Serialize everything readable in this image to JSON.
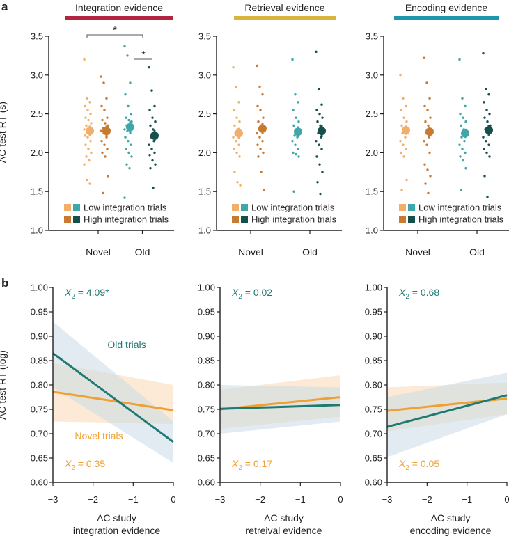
{
  "panel_labels": {
    "a": "a",
    "b": "b"
  },
  "colors": {
    "novel_low": "#f0b06b",
    "novel_high": "#c87a30",
    "old_low": "#3fa7a9",
    "old_high": "#174f4c",
    "integration_bar": "#b22440",
    "retrieval_bar": "#d9b43a",
    "encoding_bar": "#1d96ae",
    "novel_line": "#f0a033",
    "old_line": "#1f7a74",
    "novel_band": "#fbe3c8",
    "old_band": "#c9dbe6"
  },
  "chart_data": [
    {
      "type": "scatter",
      "panel": "a",
      "title": "Integration evidence",
      "ylabel": "AC test RT (s)",
      "ylim": [
        1.0,
        3.5
      ],
      "yticks": [
        "1.0",
        "1.5",
        "2.0",
        "2.5",
        "3.0",
        "3.5"
      ],
      "categories": [
        "Novel",
        "Old"
      ],
      "legend": [
        "Low integration trials",
        "High integration trials"
      ],
      "significance": [
        "*",
        "*"
      ],
      "series": [
        {
          "name": "Novel low",
          "color_key": "novel_low",
          "mean": 2.28,
          "err": 0.07,
          "points": [
            3.2,
            2.7,
            2.65,
            2.6,
            2.55,
            2.5,
            2.45,
            2.42,
            2.38,
            2.35,
            2.32,
            2.3,
            2.28,
            2.25,
            2.22,
            2.2,
            2.15,
            2.1,
            2.05,
            2.0,
            1.95,
            1.9,
            1.85,
            1.65,
            1.6
          ]
        },
        {
          "name": "Novel high",
          "color_key": "novel_high",
          "mean": 2.28,
          "err": 0.07,
          "points": [
            2.98,
            2.9,
            2.7,
            2.6,
            2.55,
            2.45,
            2.42,
            2.38,
            2.35,
            2.32,
            2.3,
            2.28,
            2.25,
            2.2,
            2.15,
            2.1,
            2.05,
            2.0,
            1.95,
            1.7,
            1.48
          ]
        },
        {
          "name": "Old low",
          "color_key": "old_low",
          "mean": 2.33,
          "err": 0.08,
          "points": [
            3.37,
            3.25,
            2.9,
            2.75,
            2.6,
            2.5,
            2.45,
            2.42,
            2.4,
            2.35,
            2.32,
            2.3,
            2.28,
            2.25,
            2.2,
            2.15,
            2.1,
            2.05,
            2.0,
            1.95,
            1.85,
            1.8,
            1.42
          ]
        },
        {
          "name": "Old high",
          "color_key": "old_high",
          "mean": 2.22,
          "err": 0.07,
          "points": [
            3.1,
            2.8,
            2.6,
            2.55,
            2.45,
            2.4,
            2.35,
            2.3,
            2.25,
            2.2,
            2.15,
            2.1,
            2.05,
            2.0,
            1.97,
            1.9,
            1.85,
            1.8,
            1.55
          ]
        }
      ]
    },
    {
      "type": "scatter",
      "panel": "a",
      "title": "Retrieval evidence",
      "ylim": [
        1.0,
        3.5
      ],
      "yticks": [
        "1.0",
        "1.5",
        "2.0",
        "2.5",
        "3.0",
        "3.5"
      ],
      "categories": [
        "Novel",
        "Old"
      ],
      "legend": [
        "Low integration trials",
        "High integration trials"
      ],
      "series": [
        {
          "name": "Novel low",
          "color_key": "novel_low",
          "mean": 2.25,
          "err": 0.07,
          "points": [
            3.1,
            2.85,
            2.65,
            2.55,
            2.45,
            2.4,
            2.35,
            2.3,
            2.28,
            2.25,
            2.22,
            2.2,
            2.15,
            2.1,
            2.05,
            2.0,
            1.95,
            1.75,
            1.62,
            1.58
          ]
        },
        {
          "name": "Novel high",
          "color_key": "novel_high",
          "mean": 2.31,
          "err": 0.07,
          "points": [
            3.12,
            2.85,
            2.75,
            2.6,
            2.55,
            2.45,
            2.4,
            2.35,
            2.32,
            2.3,
            2.28,
            2.25,
            2.2,
            2.15,
            2.1,
            2.05,
            2.0,
            1.95,
            1.75,
            1.52
          ]
        },
        {
          "name": "Old low",
          "color_key": "old_low",
          "mean": 2.27,
          "err": 0.07,
          "points": [
            3.2,
            2.75,
            2.65,
            2.55,
            2.45,
            2.4,
            2.35,
            2.3,
            2.25,
            2.22,
            2.2,
            2.15,
            2.1,
            2.05,
            2.0,
            1.98,
            1.95,
            1.5
          ]
        },
        {
          "name": "Old high",
          "color_key": "old_high",
          "mean": 2.28,
          "err": 0.08,
          "points": [
            3.3,
            2.82,
            2.62,
            2.55,
            2.5,
            2.45,
            2.4,
            2.35,
            2.3,
            2.25,
            2.2,
            2.15,
            2.1,
            2.05,
            1.95,
            1.85,
            1.75,
            1.62,
            1.47
          ]
        }
      ]
    },
    {
      "type": "scatter",
      "panel": "a",
      "title": "Encoding evidence",
      "ylim": [
        1.0,
        3.5
      ],
      "yticks": [
        "1.0",
        "1.5",
        "2.0",
        "2.5",
        "3.0",
        "3.5"
      ],
      "categories": [
        "Novel",
        "Old"
      ],
      "legend": [
        "Low integration trials",
        "High integration trials"
      ],
      "series": [
        {
          "name": "Novel low",
          "color_key": "novel_low",
          "mean": 2.29,
          "err": 0.06,
          "points": [
            3.0,
            2.7,
            2.6,
            2.55,
            2.45,
            2.4,
            2.35,
            2.3,
            2.28,
            2.25,
            2.2,
            2.15,
            2.1,
            2.05,
            2.0,
            1.95,
            1.65,
            1.52
          ]
        },
        {
          "name": "Novel high",
          "color_key": "novel_high",
          "mean": 2.27,
          "err": 0.06,
          "points": [
            3.22,
            2.9,
            2.7,
            2.6,
            2.55,
            2.45,
            2.4,
            2.35,
            2.3,
            2.25,
            2.2,
            2.15,
            2.1,
            2.0,
            1.85,
            1.78,
            1.7,
            1.6,
            1.48
          ]
        },
        {
          "name": "Old low",
          "color_key": "old_low",
          "mean": 2.25,
          "err": 0.06,
          "points": [
            3.2,
            2.7,
            2.6,
            2.5,
            2.45,
            2.4,
            2.35,
            2.3,
            2.25,
            2.2,
            2.15,
            2.1,
            2.05,
            2.0,
            1.95,
            1.9,
            1.8,
            1.52
          ]
        },
        {
          "name": "Old high",
          "color_key": "old_high",
          "mean": 2.29,
          "err": 0.07,
          "points": [
            3.28,
            2.82,
            2.75,
            2.65,
            2.55,
            2.5,
            2.45,
            2.4,
            2.35,
            2.3,
            2.25,
            2.2,
            2.15,
            2.1,
            2.05,
            2.0,
            1.95,
            1.7,
            1.43
          ]
        }
      ]
    },
    {
      "type": "line",
      "panel": "b",
      "ylabel": "AC test RT (log)",
      "xlabel": [
        "AC study",
        "integration evidence"
      ],
      "xlim": [
        -3,
        0
      ],
      "ylim": [
        0.6,
        1.0
      ],
      "xticks": [
        "−3",
        "−2",
        "−1",
        "0"
      ],
      "yticks": [
        "0.60",
        "0.65",
        "0.70",
        "0.75",
        "0.80",
        "0.85",
        "0.90",
        "0.95",
        "1.00"
      ],
      "annotations": {
        "old_stat": "4.09*",
        "novel_stat": "0.35",
        "old_label": "Old trials",
        "novel_label": "Novel trials",
        "stat_prefix": "X",
        "stat_sub": "2",
        "stat_eq": " = "
      },
      "series": [
        {
          "name": "Old trials",
          "color_key": "old_line",
          "band_key": "old_band",
          "x": [
            -3,
            0
          ],
          "y": [
            0.865,
            0.683
          ],
          "lower": [
            0.795,
            0.64
          ],
          "upper": [
            0.93,
            0.725
          ]
        },
        {
          "name": "Novel trials",
          "color_key": "novel_line",
          "band_key": "novel_band",
          "x": [
            -3,
            0
          ],
          "y": [
            0.786,
            0.748
          ],
          "lower": [
            0.725,
            0.72
          ],
          "upper": [
            0.845,
            0.8
          ]
        }
      ]
    },
    {
      "type": "line",
      "panel": "b",
      "xlabel": [
        "AC study",
        "retreival evidence"
      ],
      "xlim": [
        -3,
        0
      ],
      "ylim": [
        0.6,
        1.0
      ],
      "xticks": [
        "−3",
        "−2",
        "−1",
        "0"
      ],
      "yticks": [
        "0.60",
        "0.65",
        "0.70",
        "0.75",
        "0.80",
        "0.85",
        "0.90",
        "0.95",
        "1.00"
      ],
      "annotations": {
        "old_stat": "0.02",
        "novel_stat": "0.17",
        "stat_prefix": "X",
        "stat_sub": "2",
        "stat_eq": " = "
      },
      "series": [
        {
          "name": "Old trials",
          "color_key": "old_line",
          "band_key": "old_band",
          "x": [
            -3,
            0
          ],
          "y": [
            0.751,
            0.759
          ],
          "lower": [
            0.7,
            0.725
          ],
          "upper": [
            0.8,
            0.795
          ]
        },
        {
          "name": "Novel trials",
          "color_key": "novel_line",
          "band_key": "novel_band",
          "x": [
            -3,
            0
          ],
          "y": [
            0.75,
            0.775
          ],
          "lower": [
            0.71,
            0.735
          ],
          "upper": [
            0.79,
            0.82
          ]
        }
      ]
    },
    {
      "type": "line",
      "panel": "b",
      "xlabel": [
        "AC study",
        "encoding evidence"
      ],
      "xlim": [
        -3,
        0
      ],
      "ylim": [
        0.6,
        1.0
      ],
      "xticks": [
        "−3",
        "−2",
        "−1",
        "0"
      ],
      "yticks": [
        "0.60",
        "0.65",
        "0.70",
        "0.75",
        "0.80",
        "0.85",
        "0.90",
        "0.95",
        "1.00"
      ],
      "annotations": {
        "old_stat": "0.68",
        "novel_stat": "0.05",
        "stat_prefix": "X",
        "stat_sub": "2",
        "stat_eq": " = "
      },
      "series": [
        {
          "name": "Old trials",
          "color_key": "old_line",
          "band_key": "old_band",
          "x": [
            -3,
            0
          ],
          "y": [
            0.714,
            0.779
          ],
          "lower": [
            0.652,
            0.74
          ],
          "upper": [
            0.775,
            0.825
          ]
        },
        {
          "name": "Novel trials",
          "color_key": "novel_line",
          "band_key": "novel_band",
          "x": [
            -3,
            0
          ],
          "y": [
            0.747,
            0.772
          ],
          "lower": [
            0.705,
            0.74
          ],
          "upper": [
            0.795,
            0.805
          ]
        }
      ]
    }
  ]
}
